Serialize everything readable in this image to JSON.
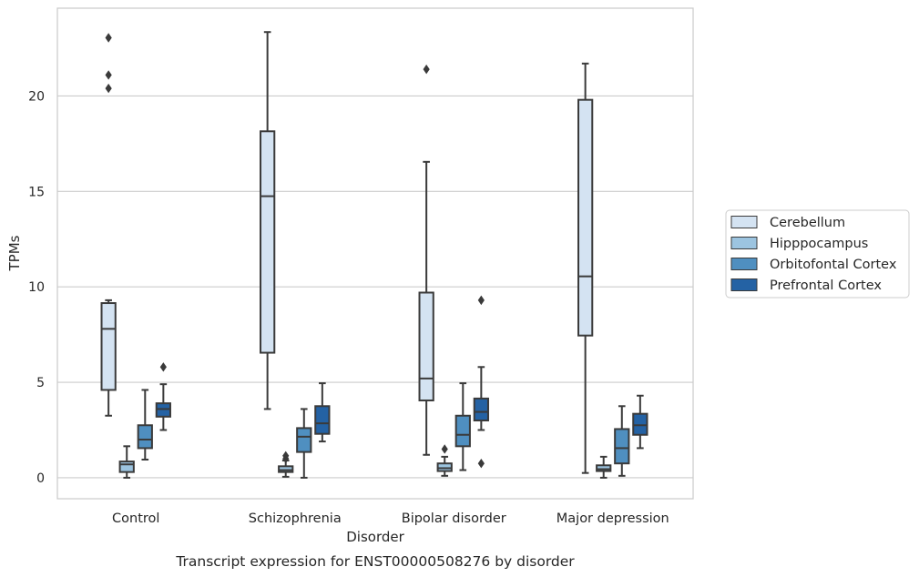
{
  "chart_data": {
    "type": "box",
    "caption": "Transcript expression for ENST00000508276 by disorder",
    "xlabel": "Disorder",
    "ylabel": "TPMs",
    "ylim": [
      -1.1,
      24.6
    ],
    "yticks": [
      0,
      5,
      10,
      15,
      20
    ],
    "ytick_labels": [
      "0",
      "5",
      "10",
      "15",
      "20"
    ],
    "grid": "horizontal",
    "legend_position": "right",
    "categories": [
      "Control",
      "Schizophrenia",
      "Bipolar disorder",
      "Major depression"
    ],
    "series": [
      {
        "name": "Cerebellum",
        "color": "#d4e3f2",
        "boxes": [
          {
            "whisker_low": 3.25,
            "q1": 4.6,
            "median": 7.8,
            "q3": 9.15,
            "whisker_high": 9.3,
            "outliers": [
              20.4,
              21.1,
              23.05
            ]
          },
          {
            "whisker_low": 3.6,
            "q1": 6.55,
            "median": 14.75,
            "q3": 18.15,
            "whisker_high": 23.35,
            "outliers": []
          },
          {
            "whisker_low": 1.2,
            "q1": 4.05,
            "median": 5.2,
            "q3": 9.7,
            "whisker_high": 16.55,
            "outliers": [
              21.4
            ]
          },
          {
            "whisker_low": 0.25,
            "q1": 7.45,
            "median": 10.55,
            "q3": 19.8,
            "whisker_high": 21.7,
            "outliers": []
          }
        ]
      },
      {
        "name": "Hipppocampus",
        "color": "#9cc4e0",
        "boxes": [
          {
            "whisker_low": 0.0,
            "q1": 0.3,
            "median": 0.7,
            "q3": 0.85,
            "whisker_high": 1.65,
            "outliers": []
          },
          {
            "whisker_low": 0.05,
            "q1": 0.3,
            "median": 0.4,
            "q3": 0.6,
            "whisker_high": 0.9,
            "outliers": [
              1.0,
              1.15
            ]
          },
          {
            "whisker_low": 0.1,
            "q1": 0.35,
            "median": 0.5,
            "q3": 0.75,
            "whisker_high": 1.1,
            "outliers": [
              1.5
            ]
          },
          {
            "whisker_low": 0.0,
            "q1": 0.35,
            "median": 0.45,
            "q3": 0.65,
            "whisker_high": 1.1,
            "outliers": []
          }
        ]
      },
      {
        "name": "Orbitofontal Cortex",
        "color": "#4f8fc0",
        "boxes": [
          {
            "whisker_low": 0.95,
            "q1": 1.55,
            "median": 2.0,
            "q3": 2.75,
            "whisker_high": 4.6,
            "outliers": []
          },
          {
            "whisker_low": 0.0,
            "q1": 1.35,
            "median": 2.15,
            "q3": 2.6,
            "whisker_high": 3.6,
            "outliers": []
          },
          {
            "whisker_low": 0.4,
            "q1": 1.65,
            "median": 2.25,
            "q3": 3.25,
            "whisker_high": 4.95,
            "outliers": []
          },
          {
            "whisker_low": 0.1,
            "q1": 0.75,
            "median": 1.55,
            "q3": 2.55,
            "whisker_high": 3.75,
            "outliers": []
          }
        ]
      },
      {
        "name": "Prefrontal Cortex",
        "color": "#2462a4",
        "boxes": [
          {
            "whisker_low": 2.5,
            "q1": 3.2,
            "median": 3.6,
            "q3": 3.9,
            "whisker_high": 4.9,
            "outliers": [
              5.8
            ]
          },
          {
            "whisker_low": 1.9,
            "q1": 2.3,
            "median": 2.85,
            "q3": 3.75,
            "whisker_high": 4.95,
            "outliers": []
          },
          {
            "whisker_low": 2.5,
            "q1": 3.0,
            "median": 3.45,
            "q3": 4.15,
            "whisker_high": 5.8,
            "outliers": [
              9.3,
              0.75
            ]
          },
          {
            "whisker_low": 1.55,
            "q1": 2.25,
            "median": 2.75,
            "q3": 3.35,
            "whisker_high": 4.3,
            "outliers": []
          }
        ]
      }
    ]
  }
}
